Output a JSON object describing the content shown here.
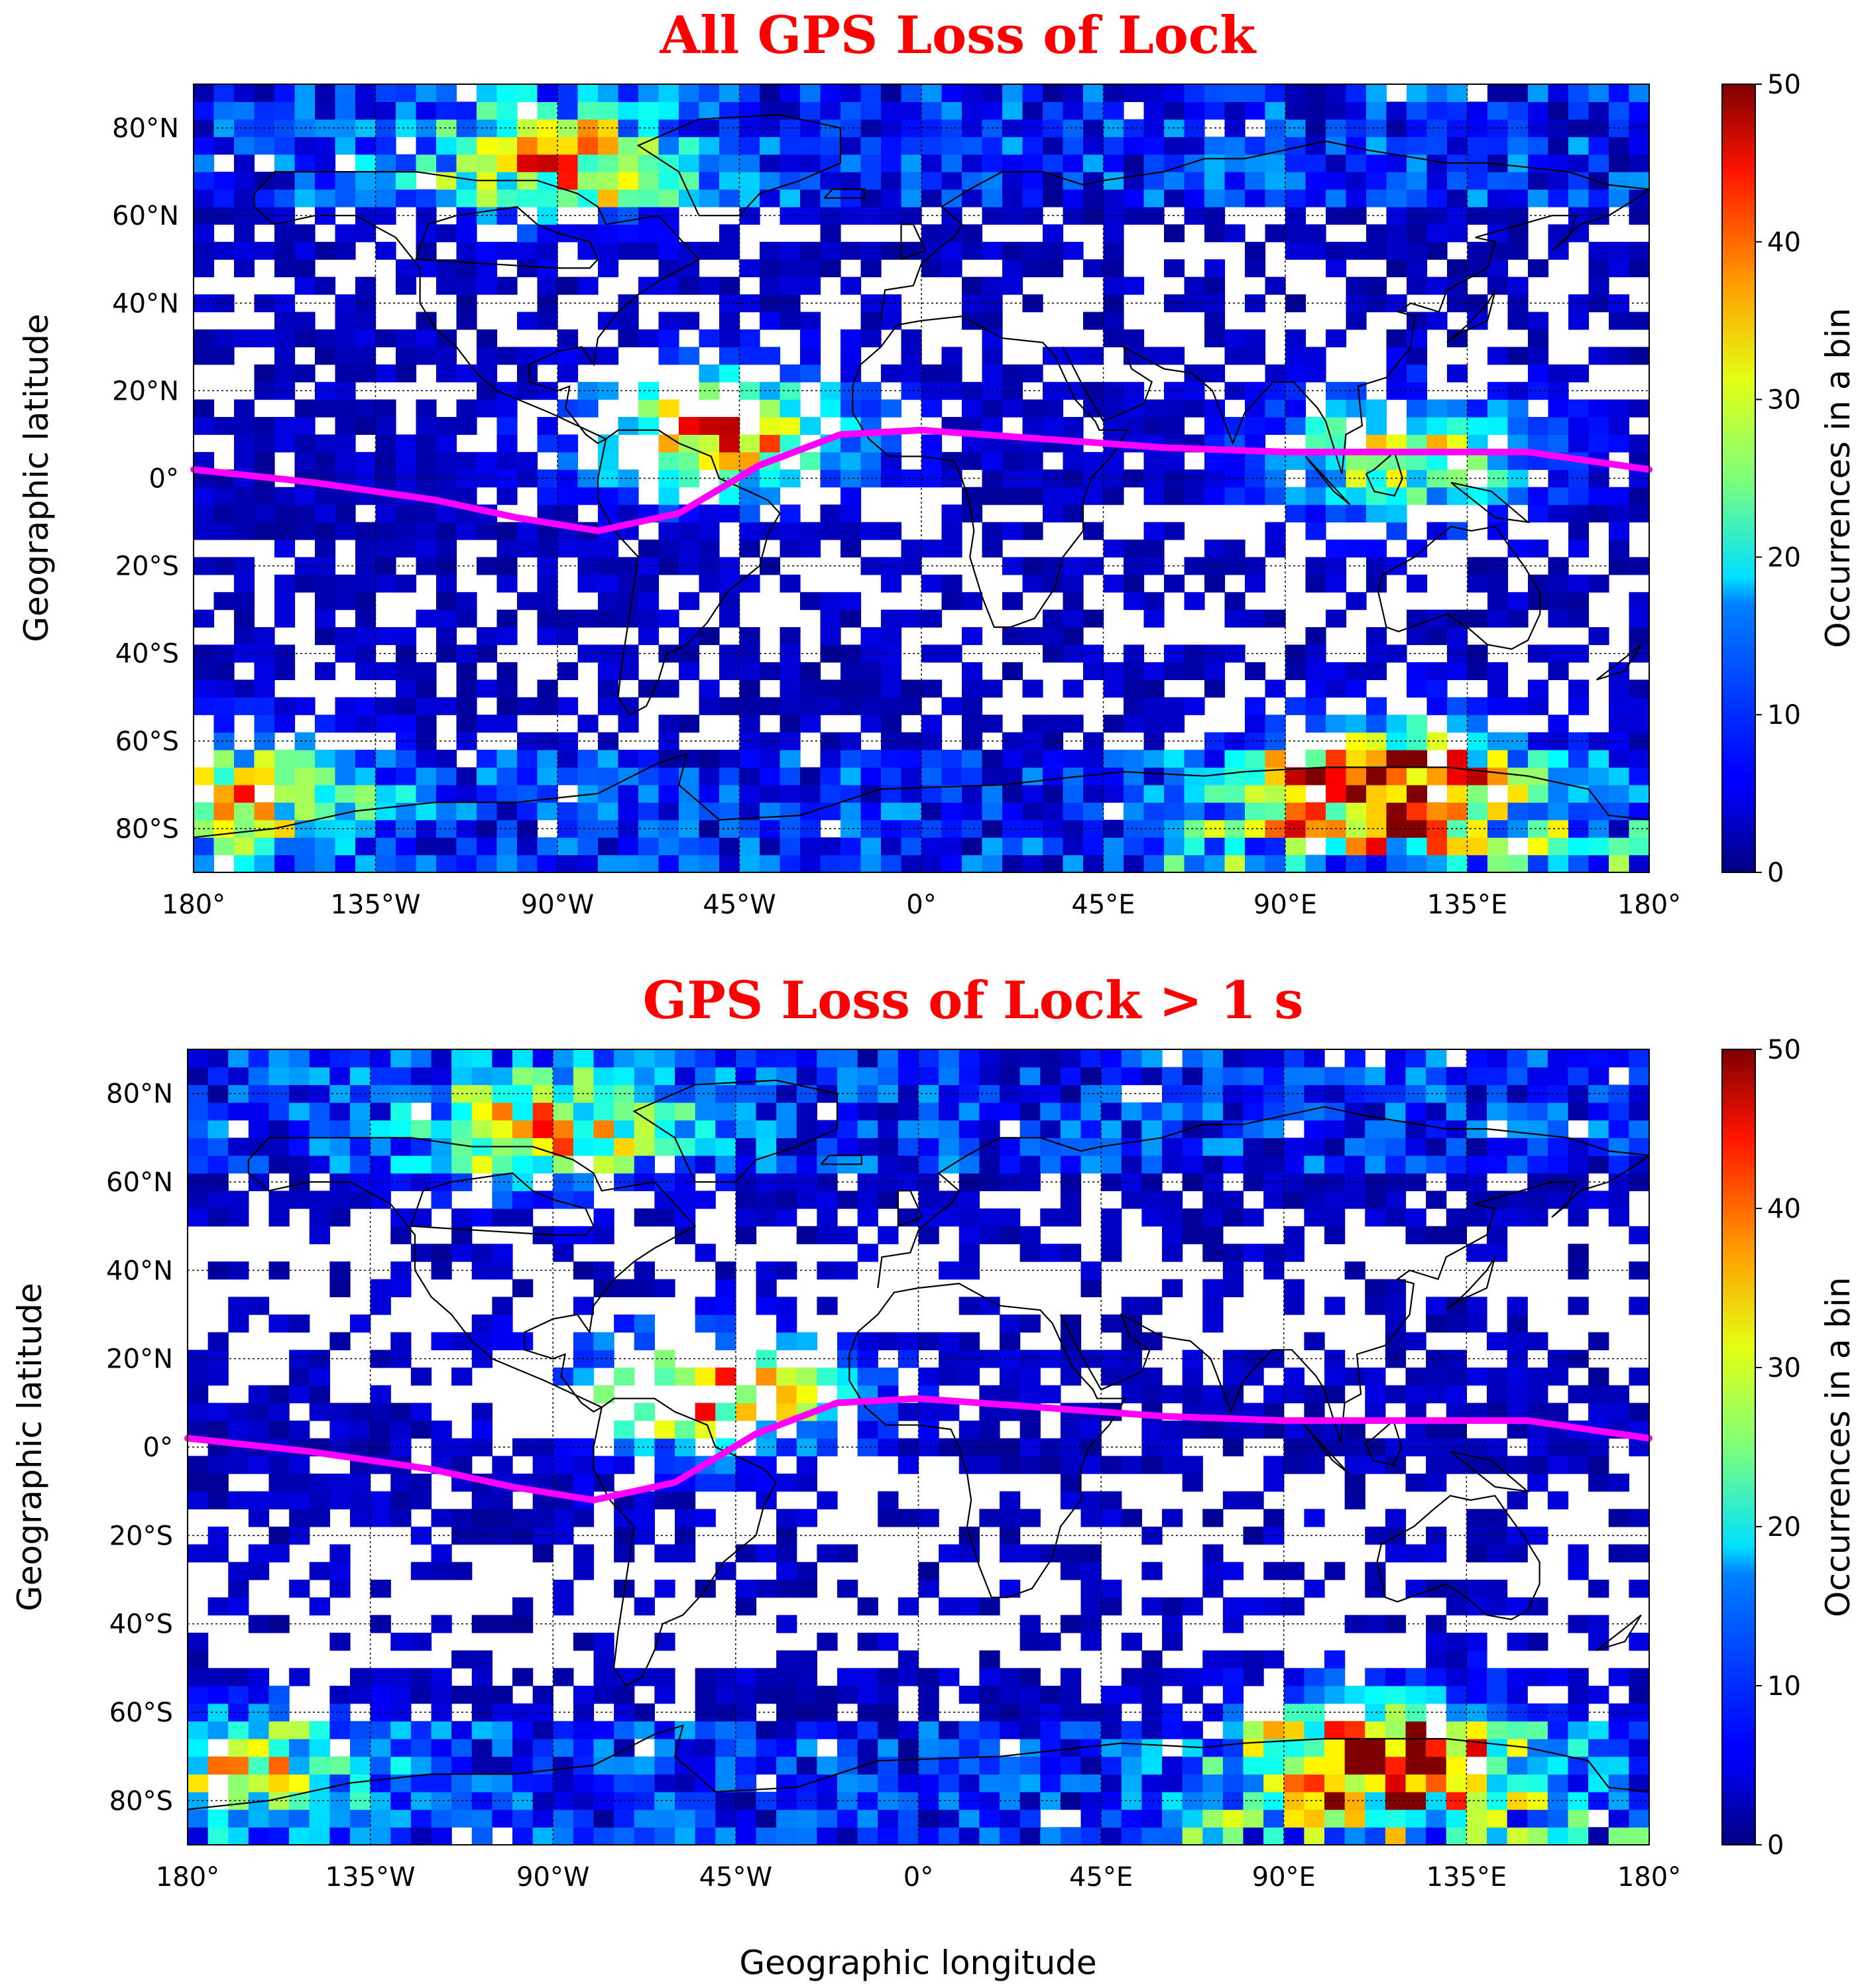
{
  "chart_data": [
    {
      "type": "heatmap",
      "title": "All GPS Loss of Lock",
      "xlabel": "",
      "ylabel": "Geographic latitude",
      "xlim": [
        -180,
        180
      ],
      "ylim": [
        -90,
        90
      ],
      "x_ticks": [
        -180,
        -135,
        -90,
        -45,
        0,
        45,
        90,
        135,
        180
      ],
      "x_tick_labels": [
        "180°",
        "135°W",
        "90°W",
        "45°W",
        "0°",
        "45°E",
        "90°E",
        "135°E",
        "180°"
      ],
      "y_ticks": [
        80,
        60,
        40,
        20,
        0,
        -20,
        -40,
        -60,
        -80
      ],
      "y_tick_labels": [
        "80°N",
        "60°N",
        "40°N",
        "20°N",
        "0°",
        "20°S",
        "40°S",
        "60°S",
        "80°S"
      ],
      "grid": true,
      "colorbar": {
        "label": "Occurrences in a bin",
        "range": [
          0,
          50
        ],
        "ticks": [
          0,
          10,
          20,
          30,
          40,
          50
        ],
        "tick_labels": [
          "0",
          "10",
          "20",
          "30",
          "40",
          "50"
        ],
        "colormap": "jet"
      },
      "bins": {
        "lon_step": 5,
        "lat_step": 4
      },
      "hotspots": [
        {
          "lon": -50,
          "lat": 10,
          "value": 40
        },
        {
          "lon": -90,
          "lat": 72,
          "value": 30
        },
        {
          "lon": 115,
          "lat": -70,
          "value": 50
        },
        {
          "lon": 120,
          "lat": 5,
          "value": 30
        },
        {
          "lon": -170,
          "lat": -72,
          "value": 28
        }
      ],
      "magnetic_equator": {
        "color": "#ff00ff",
        "lon": [
          -180,
          -150,
          -120,
          -100,
          -80,
          -60,
          -40,
          -20,
          0,
          30,
          60,
          90,
          120,
          150,
          180
        ],
        "lat": [
          2,
          -1,
          -5,
          -9,
          -12,
          -8,
          3,
          10,
          11,
          9,
          7,
          6,
          6,
          6,
          2
        ]
      }
    },
    {
      "type": "heatmap",
      "title": "GPS Loss of Lock  > 1 s",
      "xlabel": "Geographic longitude",
      "ylabel": "Geographic latitude",
      "xlim": [
        -180,
        180
      ],
      "ylim": [
        -90,
        90
      ],
      "x_ticks": [
        -180,
        -135,
        -90,
        -45,
        0,
        45,
        90,
        135,
        180
      ],
      "x_tick_labels": [
        "180°",
        "135°W",
        "90°W",
        "45°W",
        "0°",
        "45°E",
        "90°E",
        "135°E",
        "180°"
      ],
      "y_ticks": [
        80,
        60,
        40,
        20,
        0,
        -20,
        -40,
        -60,
        -80
      ],
      "y_tick_labels": [
        "80°N",
        "60°N",
        "40°N",
        "20°N",
        "0°",
        "20°S",
        "40°S",
        "60°S",
        "80°S"
      ],
      "grid": true,
      "colorbar": {
        "label": "Occurrences in a bin",
        "range": [
          0,
          50
        ],
        "ticks": [
          0,
          10,
          20,
          30,
          40,
          50
        ],
        "tick_labels": [
          "0",
          "10",
          "20",
          "30",
          "40",
          "50"
        ],
        "colormap": "jet"
      },
      "bins": {
        "lon_step": 5,
        "lat_step": 4
      },
      "hotspots": [
        {
          "lon": -50,
          "lat": 12,
          "value": 38
        },
        {
          "lon": -90,
          "lat": 72,
          "value": 28
        },
        {
          "lon": 115,
          "lat": -70,
          "value": 50
        },
        {
          "lon": -170,
          "lat": -72,
          "value": 25
        }
      ],
      "magnetic_equator": {
        "color": "#ff00ff",
        "lon": [
          -180,
          -150,
          -120,
          -100,
          -80,
          -60,
          -40,
          -20,
          0,
          30,
          60,
          90,
          120,
          150,
          180
        ],
        "lat": [
          2,
          -1,
          -5,
          -9,
          -12,
          -8,
          3,
          10,
          11,
          9,
          7,
          6,
          6,
          6,
          2
        ]
      }
    }
  ]
}
